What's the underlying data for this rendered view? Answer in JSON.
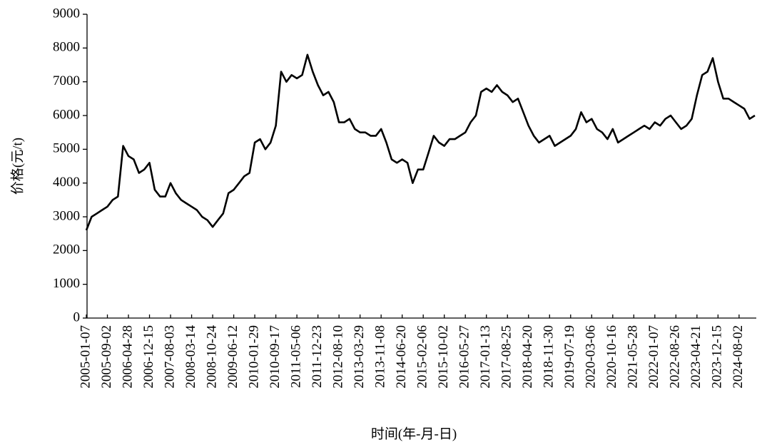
{
  "chart_data": {
    "type": "line",
    "xlabel": "时间(年-月-日)",
    "ylabel": "价格(元/t)",
    "color": "#000000",
    "ylim": [
      0,
      9000
    ],
    "yticks": [
      0,
      1000,
      2000,
      3000,
      4000,
      5000,
      6000,
      7000,
      8000,
      9000
    ],
    "categories": [
      "2005-01-07",
      null,
      null,
      null,
      "2005-09-02",
      null,
      null,
      null,
      "2006-04-28",
      null,
      null,
      null,
      "2006-12-15",
      null,
      null,
      null,
      "2007-08-03",
      null,
      null,
      null,
      "2008-03-14",
      null,
      null,
      null,
      "2008-10-24",
      null,
      null,
      null,
      "2009-06-12",
      null,
      null,
      null,
      "2010-01-29",
      null,
      null,
      null,
      "2010-09-17",
      null,
      null,
      null,
      "2011-05-06",
      null,
      null,
      null,
      "2011-12-23",
      null,
      null,
      null,
      "2012-08-10",
      null,
      null,
      null,
      "2013-03-29",
      null,
      null,
      null,
      "2013-11-08",
      null,
      null,
      null,
      "2014-06-20",
      null,
      null,
      null,
      "2015-02-06",
      null,
      null,
      null,
      "2015-10-02",
      null,
      null,
      null,
      "2016-05-27",
      null,
      null,
      null,
      "2017-01-13",
      null,
      null,
      null,
      "2017-08-25",
      null,
      null,
      null,
      "2018-04-20",
      null,
      null,
      null,
      "2018-11-30",
      null,
      null,
      null,
      "2019-07-19",
      null,
      null,
      null,
      "2020-03-06",
      null,
      null,
      null,
      "2020-10-16",
      null,
      null,
      null,
      "2021-05-28",
      null,
      null,
      null,
      "2022-01-07",
      null,
      null,
      null,
      "2022-08-26",
      null,
      null,
      null,
      "2023-04-21",
      null,
      null,
      null,
      "2023-12-15",
      null,
      null,
      null,
      "2024-08-02",
      null,
      null,
      null
    ],
    "values": [
      2600,
      3000,
      3100,
      3200,
      3300,
      3500,
      3600,
      5100,
      4800,
      4700,
      4300,
      4400,
      4600,
      3800,
      3600,
      3600,
      4000,
      3700,
      3500,
      3400,
      3300,
      3200,
      3000,
      2900,
      2700,
      2900,
      3100,
      3700,
      3800,
      4000,
      4200,
      4300,
      5200,
      5300,
      5000,
      5200,
      5700,
      7300,
      7000,
      7200,
      7100,
      7200,
      7800,
      7300,
      6900,
      6600,
      6700,
      6400,
      5800,
      5800,
      5900,
      5600,
      5500,
      5500,
      5400,
      5400,
      5600,
      5200,
      4700,
      4600,
      4700,
      4600,
      4000,
      4400,
      4400,
      4900,
      5400,
      5200,
      5100,
      5300,
      5300,
      5400,
      5500,
      5800,
      6000,
      6700,
      6800,
      6700,
      6900,
      6700,
      6600,
      6400,
      6500,
      6100,
      5700,
      5400,
      5200,
      5300,
      5400,
      5100,
      5200,
      5300,
      5400,
      5600,
      6100,
      5800,
      5900,
      5600,
      5500,
      5300,
      5600,
      5200,
      5300,
      5400,
      5500,
      5600,
      5700,
      5600,
      5800,
      5700,
      5900,
      6000,
      5800,
      5600,
      5700,
      5900,
      6600,
      7200,
      7300,
      7700,
      7000,
      6500,
      6500,
      6400,
      6300,
      6200,
      5900,
      6000
    ]
  }
}
